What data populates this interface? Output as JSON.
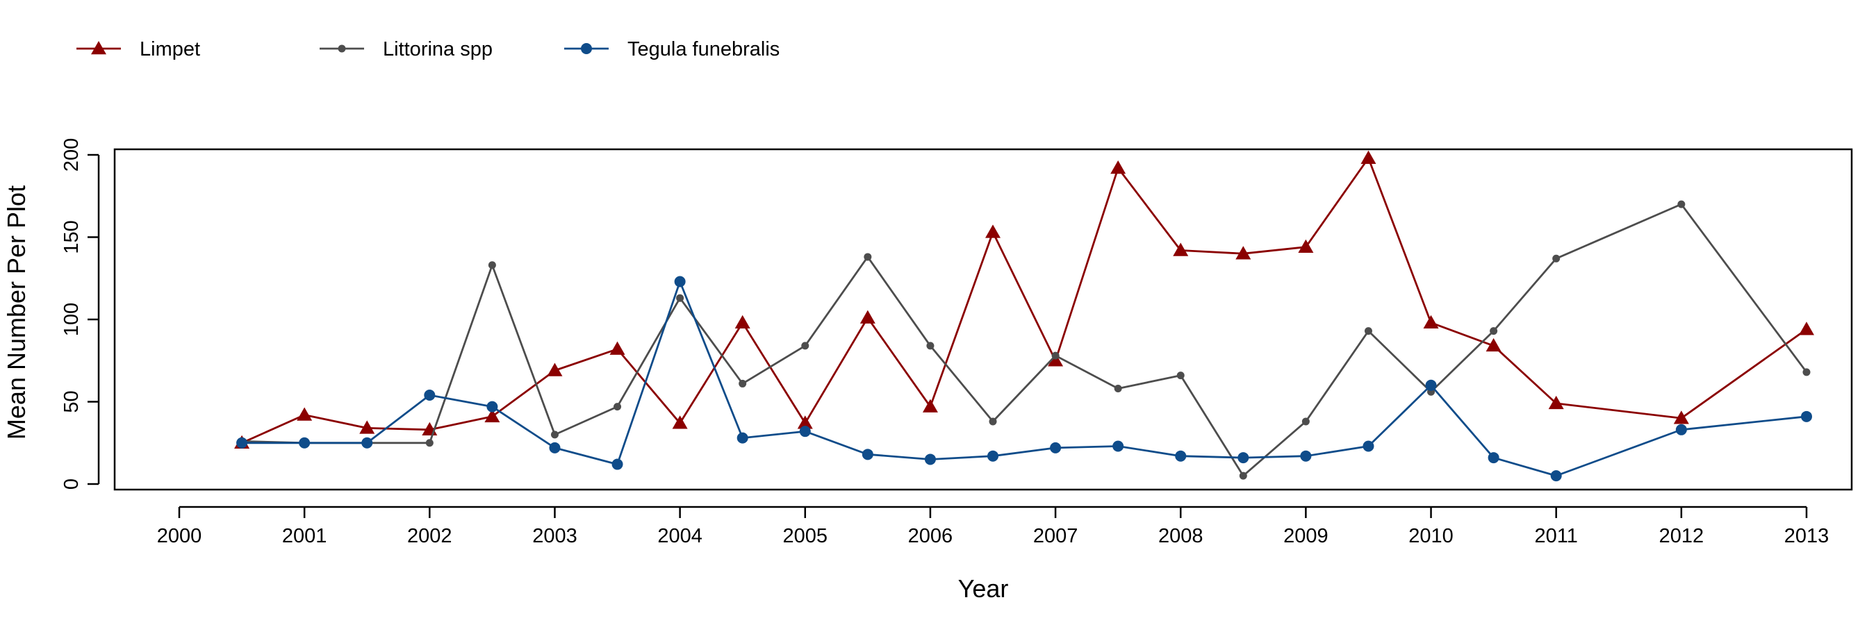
{
  "chart_data": {
    "type": "line",
    "title": "",
    "xlabel": "Year",
    "ylabel": "Mean Number Per Plot",
    "xlim": [
      2000,
      2013
    ],
    "ylim": [
      0,
      200
    ],
    "x_ticks": [
      "2000",
      "2001",
      "2002",
      "2003",
      "2004",
      "2005",
      "2006",
      "2007",
      "2008",
      "2009",
      "2010",
      "2011",
      "2012",
      "2013"
    ],
    "y_ticks": [
      "0",
      "50",
      "100",
      "150",
      "200"
    ],
    "grid": false,
    "legend_placement": "top-left",
    "series": [
      {
        "name": "Limpet",
        "color": "#8b0000",
        "marker": "triangle",
        "points": [
          [
            2000.5,
            25
          ],
          [
            2001,
            42
          ],
          [
            2001.5,
            34
          ],
          [
            2002,
            33
          ],
          [
            2002.5,
            41
          ],
          [
            2003,
            69
          ],
          [
            2003.5,
            82
          ],
          [
            2004,
            37
          ],
          [
            2004.5,
            98
          ],
          [
            2005,
            37
          ],
          [
            2005.5,
            101
          ],
          [
            2006,
            47
          ],
          [
            2006.5,
            153
          ],
          [
            2007,
            75
          ],
          [
            2007.5,
            192
          ],
          [
            2008,
            142
          ],
          [
            2008.5,
            140
          ],
          [
            2009,
            144
          ],
          [
            2009.5,
            198
          ],
          [
            2010,
            98
          ],
          [
            2010.5,
            84
          ],
          [
            2011,
            49
          ],
          [
            2012,
            40
          ],
          [
            2013,
            94
          ]
        ]
      },
      {
        "name": "Littorina spp",
        "color": "#4d4d4d",
        "marker": "small-circle",
        "points": [
          [
            2000.5,
            26
          ],
          [
            2001,
            25
          ],
          [
            2001.5,
            25
          ],
          [
            2002,
            25
          ],
          [
            2002.5,
            133
          ],
          [
            2003,
            30
          ],
          [
            2003.5,
            47
          ],
          [
            2004,
            113
          ],
          [
            2004.5,
            61
          ],
          [
            2005,
            84
          ],
          [
            2005.5,
            138
          ],
          [
            2006,
            84
          ],
          [
            2006.5,
            38
          ],
          [
            2007,
            78
          ],
          [
            2007.5,
            58
          ],
          [
            2008,
            66
          ],
          [
            2008.5,
            5
          ],
          [
            2009,
            38
          ],
          [
            2009.5,
            93
          ],
          [
            2010,
            56
          ],
          [
            2010.5,
            93
          ],
          [
            2011,
            137
          ],
          [
            2012,
            170
          ],
          [
            2013,
            68
          ]
        ]
      },
      {
        "name": "Tegula funebralis",
        "color": "#0f4c8a",
        "marker": "circle",
        "points": [
          [
            2000.5,
            25
          ],
          [
            2001,
            25
          ],
          [
            2001.5,
            25
          ],
          [
            2002,
            54
          ],
          [
            2002.5,
            47
          ],
          [
            2003,
            22
          ],
          [
            2003.5,
            12
          ],
          [
            2004,
            123
          ],
          [
            2004.5,
            28
          ],
          [
            2005,
            32
          ],
          [
            2005.5,
            18
          ],
          [
            2006,
            15
          ],
          [
            2006.5,
            17
          ],
          [
            2007,
            22
          ],
          [
            2007.5,
            23
          ],
          [
            2008,
            17
          ],
          [
            2008.5,
            16
          ],
          [
            2009,
            17
          ],
          [
            2009.5,
            23
          ],
          [
            2010,
            60
          ],
          [
            2010.5,
            16
          ],
          [
            2011,
            5
          ],
          [
            2012,
            33
          ],
          [
            2013,
            41
          ]
        ]
      }
    ]
  }
}
